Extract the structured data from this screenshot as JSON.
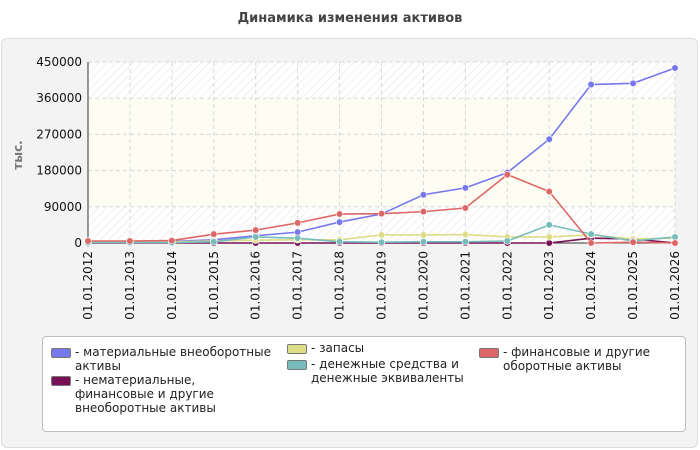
{
  "chart_data": {
    "type": "line",
    "title": "Динамика изменения активов",
    "ylabel": "тыс.",
    "xlabel": "",
    "ylim": [
      0,
      450000
    ],
    "yticks": [
      0,
      90000,
      180000,
      270000,
      360000,
      450000
    ],
    "grid": true,
    "legend_position": "bottom",
    "categories": [
      "01.01.2012",
      "01.01.2013",
      "01.01.2014",
      "01.01.2015",
      "01.01.2016",
      "01.01.2017",
      "01.01.2018",
      "01.01.2019",
      "01.01.2020",
      "01.01.2021",
      "01.01.2022",
      "01.01.2023",
      "01.01.2024",
      "01.01.2025",
      "01.01.2026"
    ],
    "series": [
      {
        "name": "- материальные внеоборотные активы",
        "color": "#7777ee",
        "values": [
          3000,
          3000,
          4000,
          8000,
          18000,
          27000,
          52000,
          72000,
          120000,
          137000,
          175000,
          258000,
          394000,
          397000,
          435000
        ]
      },
      {
        "name": "- нематериальные, финансовые и другие внеоборотные активы",
        "color": "#771155",
        "values": [
          0,
          0,
          0,
          0,
          0,
          0,
          0,
          0,
          0,
          0,
          0,
          0,
          12000,
          10000,
          0
        ]
      },
      {
        "name": "- запасы",
        "color": "#dddd88",
        "values": [
          3000,
          3000,
          3000,
          5000,
          7000,
          8000,
          8000,
          20000,
          20000,
          21000,
          15000,
          15000,
          20000,
          10000,
          12000
        ]
      },
      {
        "name": "- денежные средства и денежные эквиваленты",
        "color": "#77bbbb",
        "values": [
          1000,
          1000,
          1000,
          3000,
          15000,
          12000,
          3000,
          2000,
          3000,
          3000,
          5000,
          45000,
          22000,
          5000,
          15000
        ]
      },
      {
        "name": "- финансовые и другие оборотные активы",
        "color": "#dd6666",
        "values": [
          5000,
          5000,
          6000,
          22000,
          32000,
          50000,
          72000,
          73000,
          78000,
          87000,
          170000,
          128000,
          0,
          2000,
          0
        ]
      }
    ]
  }
}
